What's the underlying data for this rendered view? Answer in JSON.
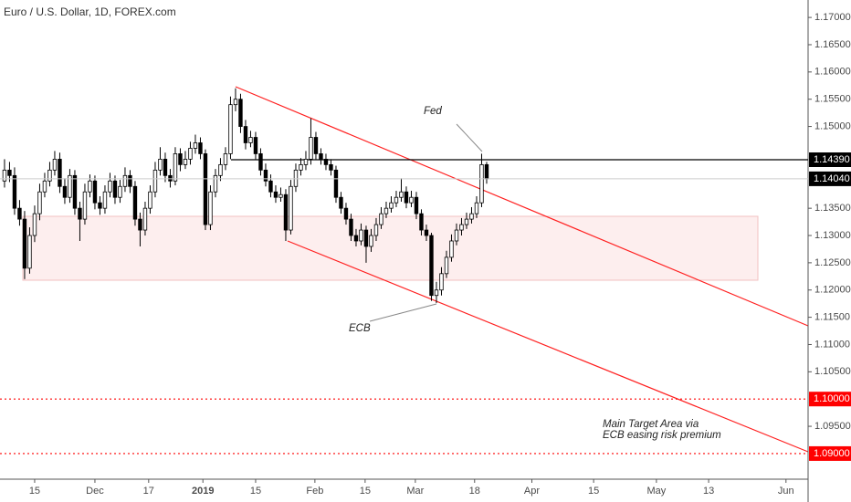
{
  "chart_data": {
    "type": "candlestick",
    "title": "Euro / U.S. Dollar, 1D, FOREX.com",
    "up_color": "#ffffff",
    "down_color": "#000000",
    "wick_color": "#000000",
    "open": [
      1.14,
      1.142,
      1.141,
      1.135,
      1.133,
      1.124,
      1.13,
      1.134,
      1.138,
      1.14,
      1.142,
      1.144,
      1.139,
      1.137,
      1.141,
      1.135,
      1.133,
      1.138,
      1.14,
      1.136,
      1.135,
      1.138,
      1.14,
      1.137,
      1.139,
      1.141,
      1.139,
      1.133,
      1.131,
      1.135,
      1.138,
      1.142,
      1.144,
      1.141,
      1.14,
      1.145,
      1.143,
      1.144,
      1.146,
      1.147,
      1.145,
      1.132,
      1.138,
      1.141,
      1.143,
      1.145,
      1.154,
      1.155,
      1.15,
      1.147,
      1.148,
      1.145,
      1.142,
      1.14,
      1.138,
      1.137,
      1.1375,
      1.131,
      1.139,
      1.142,
      1.143,
      1.144,
      1.148,
      1.145,
      1.144,
      1.143,
      1.142,
      1.137,
      1.135,
      1.133,
      1.13,
      1.129,
      1.131,
      1.128,
      1.13,
      1.132,
      1.134,
      1.135,
      1.136,
      1.137,
      1.138,
      1.136,
      1.137,
      1.134,
      1.131,
      1.13,
      1.119,
      1.12,
      1.123,
      1.126,
      1.129,
      1.131,
      1.132,
      1.133,
      1.134,
      1.136,
      1.143
    ],
    "high": [
      1.144,
      1.1435,
      1.1425,
      1.1365,
      1.1345,
      1.1315,
      1.1355,
      1.1395,
      1.1415,
      1.1435,
      1.1455,
      1.1452,
      1.1405,
      1.1422,
      1.142,
      1.1362,
      1.1395,
      1.1412,
      1.141,
      1.1372,
      1.1392,
      1.1415,
      1.141,
      1.1402,
      1.1425,
      1.142,
      1.14,
      1.1342,
      1.1362,
      1.1392,
      1.1435,
      1.1462,
      1.1452,
      1.1422,
      1.1462,
      1.146,
      1.1455,
      1.1472,
      1.1485,
      1.148,
      1.1458,
      1.1392,
      1.1422,
      1.1442,
      1.1462,
      1.1555,
      1.157,
      1.156,
      1.1512,
      1.1492,
      1.149,
      1.146,
      1.1432,
      1.1412,
      1.1392,
      1.1388,
      1.1385,
      1.1402,
      1.1432,
      1.1442,
      1.1455,
      1.1515,
      1.149,
      1.146,
      1.145,
      1.144,
      1.1428,
      1.138,
      1.136,
      1.134,
      1.1312,
      1.1322,
      1.1318,
      1.1312,
      1.1332,
      1.1352,
      1.1362,
      1.1372,
      1.1382,
      1.1405,
      1.139,
      1.1382,
      1.138,
      1.1348,
      1.132,
      1.1305,
      1.1215,
      1.1242,
      1.1272,
      1.1302,
      1.1322,
      1.1332,
      1.1342,
      1.1352,
      1.1372,
      1.145,
      1.1435
    ],
    "low": [
      1.1388,
      1.1398,
      1.1338,
      1.1318,
      1.122,
      1.123,
      1.1288,
      1.1328,
      1.137,
      1.139,
      1.141,
      1.1378,
      1.1358,
      1.136,
      1.1338,
      1.129,
      1.132,
      1.137,
      1.1348,
      1.1338,
      1.134,
      1.137,
      1.1358,
      1.136,
      1.138,
      1.1378,
      1.1318,
      1.128,
      1.13,
      1.134,
      1.137,
      1.141,
      1.1398,
      1.1388,
      1.1392,
      1.1418,
      1.1422,
      1.143,
      1.145,
      1.144,
      1.131,
      1.131,
      1.137,
      1.14,
      1.142,
      1.144,
      1.1528,
      1.1488,
      1.1458,
      1.1462,
      1.144,
      1.141,
      1.139,
      1.137,
      1.136,
      1.1362,
      1.129,
      1.1302,
      1.138,
      1.141,
      1.142,
      1.143,
      1.144,
      1.143,
      1.142,
      1.141,
      1.136,
      1.134,
      1.132,
      1.129,
      1.128,
      1.1282,
      1.125,
      1.127,
      1.129,
      1.1312,
      1.1332,
      1.1342,
      1.1352,
      1.1362,
      1.135,
      1.1352,
      1.133,
      1.13,
      1.129,
      1.118,
      1.1176,
      1.119,
      1.1222,
      1.1252,
      1.1282,
      1.13,
      1.1312,
      1.1322,
      1.1332,
      1.1352,
      1.1395
    ],
    "close": [
      1.142,
      1.141,
      1.135,
      1.133,
      1.124,
      1.13,
      1.134,
      1.138,
      1.14,
      1.142,
      1.144,
      1.139,
      1.137,
      1.141,
      1.135,
      1.133,
      1.138,
      1.14,
      1.136,
      1.135,
      1.138,
      1.14,
      1.137,
      1.139,
      1.141,
      1.139,
      1.133,
      1.131,
      1.135,
      1.138,
      1.142,
      1.144,
      1.141,
      1.14,
      1.145,
      1.143,
      1.144,
      1.146,
      1.147,
      1.145,
      1.132,
      1.138,
      1.141,
      1.143,
      1.145,
      1.154,
      1.155,
      1.15,
      1.147,
      1.148,
      1.145,
      1.142,
      1.14,
      1.138,
      1.137,
      1.1375,
      1.131,
      1.139,
      1.142,
      1.143,
      1.144,
      1.148,
      1.145,
      1.144,
      1.143,
      1.142,
      1.137,
      1.135,
      1.133,
      1.13,
      1.129,
      1.131,
      1.128,
      1.13,
      1.132,
      1.134,
      1.135,
      1.136,
      1.137,
      1.138,
      1.136,
      1.137,
      1.134,
      1.131,
      1.13,
      1.119,
      1.12,
      1.123,
      1.126,
      1.129,
      1.131,
      1.132,
      1.133,
      1.134,
      1.136,
      1.143,
      1.1404
    ],
    "last_price_label": "1.14040",
    "xlim": [
      -0.9,
      160
    ],
    "xticks": [
      {
        "value": 6,
        "label": "15"
      },
      {
        "value": 18,
        "label": "Dec"
      },
      {
        "value": 28.7,
        "label": "17"
      },
      {
        "value": 39.5,
        "label": "2019"
      },
      {
        "value": 50,
        "label": "15"
      },
      {
        "value": 61.8,
        "label": "Feb"
      },
      {
        "value": 71.8,
        "label": "15"
      },
      {
        "value": 81.8,
        "label": "Mar"
      },
      {
        "value": 93.6,
        "label": "18"
      },
      {
        "value": 105,
        "label": "Apr"
      },
      {
        "value": 117.3,
        "label": "15"
      },
      {
        "value": 129.8,
        "label": "May"
      },
      {
        "value": 140.2,
        "label": "13"
      },
      {
        "value": 155.6,
        "label": "Jun"
      }
    ],
    "ylim": [
      1.0853,
      1.1732
    ],
    "yticks": [
      {
        "value": 1.17,
        "label": "1.17000"
      },
      {
        "value": 1.165,
        "label": "1.16500"
      },
      {
        "value": 1.16,
        "label": "1.16000"
      },
      {
        "value": 1.155,
        "label": "1.15500"
      },
      {
        "value": 1.15,
        "label": "1.15000"
      },
      {
        "value": 1.135,
        "label": "1.13500"
      },
      {
        "value": 1.13,
        "label": "1.13000"
      },
      {
        "value": 1.125,
        "label": "1.12500"
      },
      {
        "value": 1.12,
        "label": "1.12000"
      },
      {
        "value": 1.115,
        "label": "1.11500"
      },
      {
        "value": 1.11,
        "label": "1.11000"
      },
      {
        "value": 1.105,
        "label": "1.10500"
      },
      {
        "value": 1.095,
        "label": "1.09500"
      }
    ],
    "levels": [
      {
        "value": 1.1439,
        "label": "1.14390",
        "color": "#000000",
        "style": "solid"
      },
      {
        "value": 1.1,
        "label": "1.10000",
        "color": "#ff0000",
        "style": "dotted"
      },
      {
        "value": 1.09,
        "label": "1.09000",
        "color": "#ff0000",
        "style": "dotted"
      }
    ],
    "annotations": [
      "Fed",
      "ECB",
      "Main Target Area via",
      "ECB easing risk premium"
    ]
  }
}
